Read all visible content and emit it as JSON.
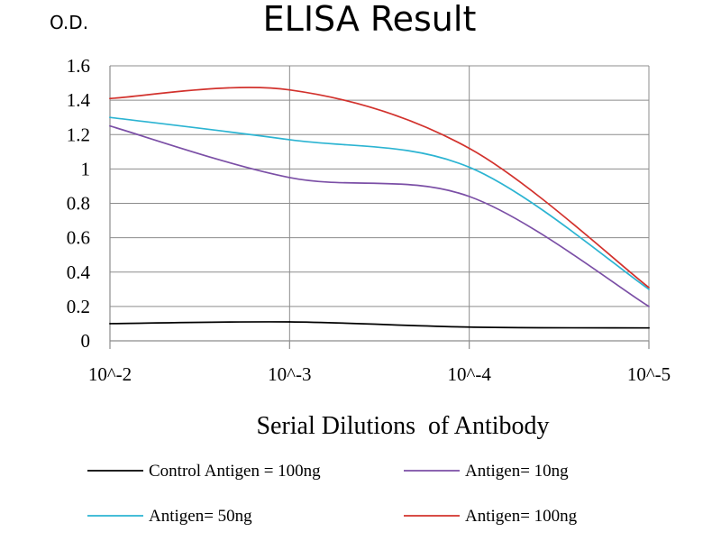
{
  "chart_data": {
    "type": "line",
    "title": "ELISA Result",
    "ylabel": "O.D.",
    "xlabel": "Serial Dilutions  of Antibody",
    "categories": [
      "10^-2",
      "10^-3",
      "10^-4",
      "10^-5"
    ],
    "ylim": [
      0,
      1.6
    ],
    "yticks": [
      "0",
      "0.2",
      "0.4",
      "0.6",
      "0.8",
      "1",
      "1.2",
      "1.4",
      "1.6"
    ],
    "grid": true,
    "legend_position": "bottom",
    "series": [
      {
        "name": "Control Antigen = 100ng",
        "color": "#000000",
        "values": [
          0.1,
          0.11,
          0.08,
          0.075
        ]
      },
      {
        "name": "Antigen= 10ng",
        "color": "#7b4fa6",
        "values": [
          1.25,
          0.95,
          0.84,
          0.2
        ]
      },
      {
        "name": "Antigen= 50ng",
        "color": "#2cb4d2",
        "values": [
          1.3,
          1.17,
          1.01,
          0.3
        ]
      },
      {
        "name": "Antigen= 100ng",
        "color": "#d2322d",
        "values": [
          1.41,
          1.46,
          1.12,
          0.31
        ]
      }
    ]
  }
}
